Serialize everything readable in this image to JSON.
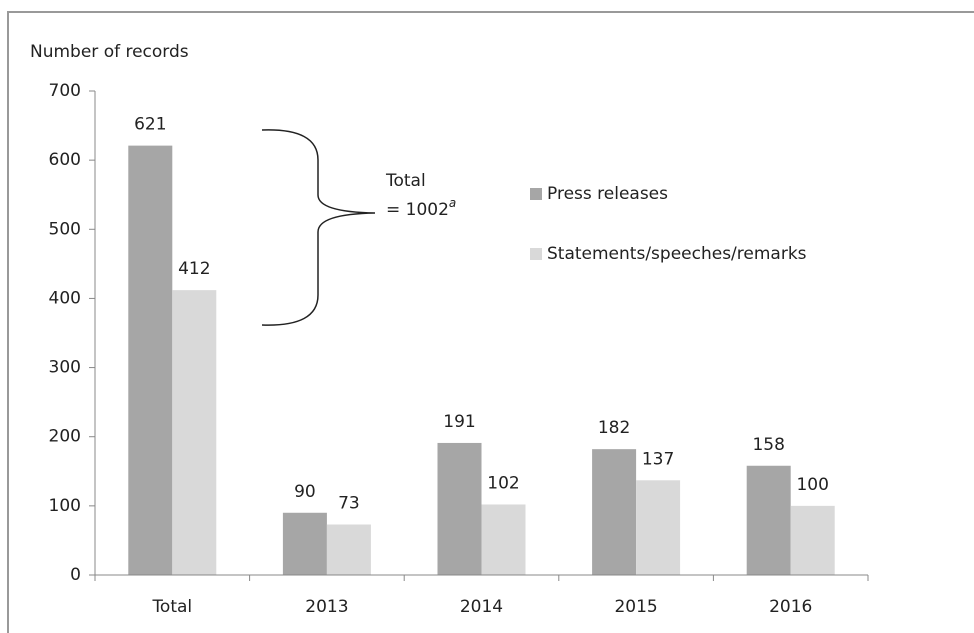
{
  "chart_data": {
    "type": "bar",
    "y_label": "Number of records",
    "categories": [
      "Total",
      "2013",
      "2014",
      "2015",
      "2016"
    ],
    "series": [
      {
        "name": "Press releases",
        "color": "#a6a6a6",
        "values": [
          621,
          90,
          191,
          182,
          158
        ]
      },
      {
        "name": "Statements/speeches/remarks",
        "color": "#d9d9d9",
        "values": [
          412,
          73,
          102,
          137,
          100
        ]
      }
    ],
    "ylim": [
      0,
      700
    ],
    "yticks": [
      0,
      100,
      200,
      300,
      400,
      500,
      600,
      700
    ],
    "annotation": {
      "lines": [
        "Total",
        "= 1002"
      ],
      "superscript": "a"
    },
    "legend": "right"
  }
}
